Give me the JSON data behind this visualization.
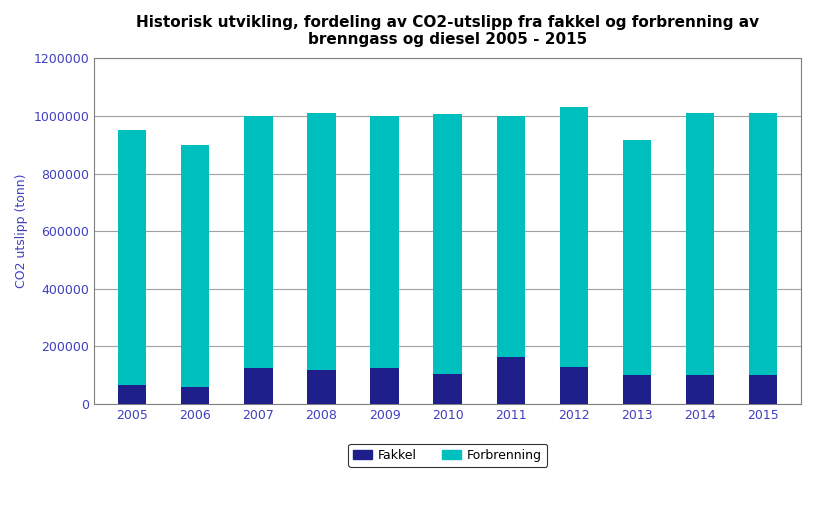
{
  "title": "Historisk utvikling, fordeling av CO2-utslipp fra fakkel og forbrenning av\nbrenngass og diesel 2005 - 2015",
  "ylabel": "CO2 utslipp (tonn)",
  "years": [
    2005,
    2006,
    2007,
    2008,
    2009,
    2010,
    2011,
    2012,
    2013,
    2014,
    2015
  ],
  "fakkel": [
    65000,
    60000,
    125000,
    120000,
    125000,
    105000,
    165000,
    130000,
    100000,
    100000,
    100000
  ],
  "forbrenning": [
    885000,
    840000,
    875000,
    890000,
    875000,
    900000,
    835000,
    900000,
    815000,
    910000,
    910000
  ],
  "fakkel_color": "#1f1f8c",
  "forbrenning_color": "#00bfbf",
  "ylim": [
    0,
    1200000
  ],
  "yticks": [
    0,
    200000,
    400000,
    600000,
    800000,
    1000000,
    1200000
  ],
  "plot_bg_color": "#ffffff",
  "fig_bg_color": "#ffffff",
  "title_fontsize": 11,
  "axis_label_fontsize": 9,
  "tick_fontsize": 9,
  "tick_color": "#4040c0",
  "legend_labels": [
    "Fakkel",
    "Forbrenning"
  ],
  "bar_width": 0.45,
  "grid_color": "#a0a0a0",
  "spine_color": "#808080"
}
